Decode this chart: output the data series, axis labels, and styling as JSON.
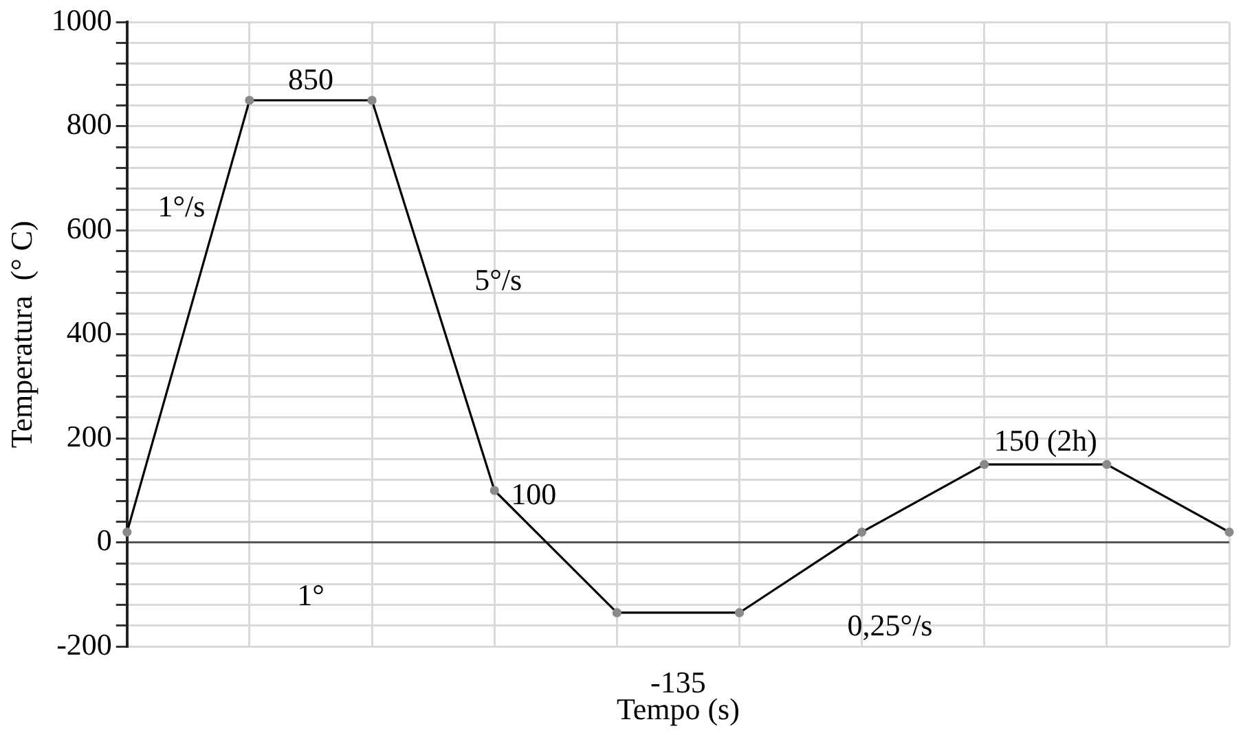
{
  "chart_data": {
    "type": "line",
    "xlabel": "Tempo (s)",
    "ylabel": "Temperatura  (° C)",
    "categories": [
      null,
      null,
      null,
      null,
      null,
      null,
      null,
      null,
      null,
      null
    ],
    "series": [
      {
        "color": "#000000",
        "values": [
          20,
          850,
          850,
          100,
          -135,
          -135,
          20,
          150,
          150,
          20
        ]
      }
    ],
    "ylim": [
      -200,
      1000
    ],
    "yticks": [
      -200,
      {
        "value": -160,
        "label": null
      },
      {
        "value": -120,
        "label": null
      },
      {
        "value": -80,
        "label": null
      },
      {
        "value": -40,
        "label": null
      },
      0,
      {
        "value": 40,
        "label": null
      },
      {
        "value": 80,
        "label": null
      },
      {
        "value": 120,
        "label": null
      },
      {
        "value": 160,
        "label": null
      },
      200,
      {
        "value": 240,
        "label": null
      },
      {
        "value": 280,
        "label": null
      },
      {
        "value": 320,
        "label": null
      },
      {
        "value": 360,
        "label": null
      },
      400,
      {
        "value": 440,
        "label": null
      },
      {
        "value": 480,
        "label": null
      },
      {
        "value": 520,
        "label": null
      },
      {
        "value": 560,
        "label": null
      },
      600,
      {
        "value": 640,
        "label": null
      },
      {
        "value": 680,
        "label": null
      },
      {
        "value": 720,
        "label": null
      },
      {
        "value": 760,
        "label": null
      },
      800,
      {
        "value": 840,
        "label": null
      },
      {
        "value": 880,
        "label": null
      },
      {
        "value": 920,
        "label": null
      },
      {
        "value": 960,
        "label": null
      },
      1000
    ],
    "annotations": [
      "850",
      "1°/s",
      "5°/s",
      "100",
      "1°",
      "-135",
      "0,25°/s",
      "150 (2h)"
    ],
    "grid": true,
    "marker": "circle",
    "line_style": "solid",
    "tick_labels": "y"
  }
}
